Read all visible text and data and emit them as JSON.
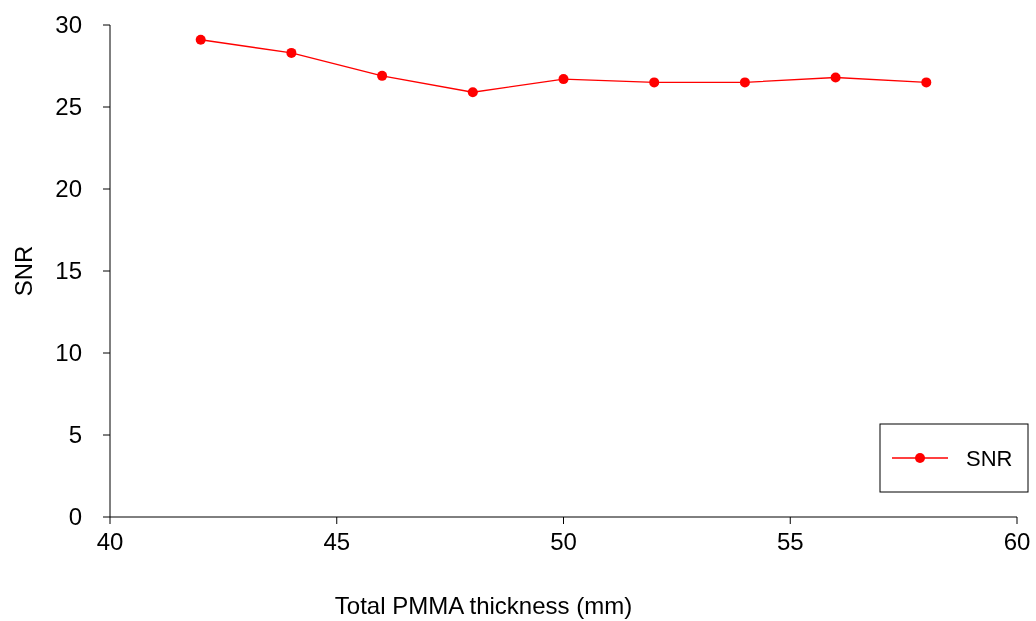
{
  "chart_data": {
    "type": "line",
    "xlabel": "Total PMMA thickness (mm)",
    "ylabel": "SNR",
    "x": [
      42,
      44,
      46,
      48,
      50,
      52,
      54,
      56,
      58
    ],
    "series": [
      {
        "name": "SNR",
        "color": "#ff0000",
        "values": [
          29.1,
          28.3,
          26.9,
          25.9,
          26.7,
          26.5,
          26.5,
          26.8,
          26.5
        ]
      }
    ],
    "xlim": [
      40,
      60
    ],
    "xticks": [
      40,
      45,
      50,
      55,
      60
    ],
    "ylim": [
      0,
      30
    ],
    "yticks": [
      0,
      5,
      10,
      15,
      20,
      25,
      30
    ],
    "marker": "circle",
    "line_style": "solid",
    "legend": "bottom right",
    "grid": false
  }
}
